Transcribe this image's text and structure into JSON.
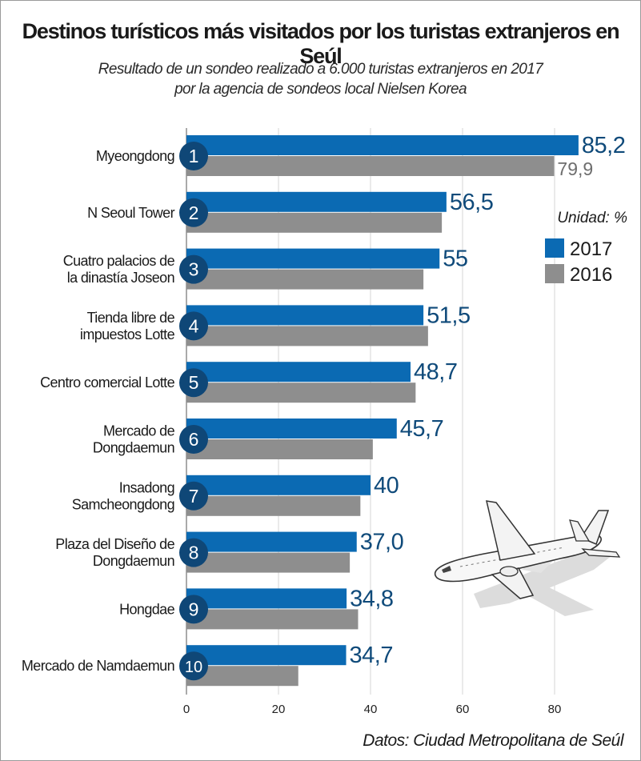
{
  "title": "Destinos turísticos más visitados por los turistas extranjeros en Seúl",
  "subtitle_line1": "Resultado de un sondeo realizado a 6.000 turistas extranjeros en 2017",
  "subtitle_line2": "por la agencia de sondeos local Nielsen Korea",
  "source": "Datos: Ciudad Metropolitana de Seúl",
  "colors": {
    "series_2017": "#0b6ab3",
    "series_2016": "#8e8e8e",
    "rank_badge": "#0f4777",
    "label_2017": "#0f4a7a",
    "label_2016": "#6e6e6e",
    "grid": "#d4d4d4"
  },
  "chart_data": {
    "type": "bar",
    "orientation": "horizontal",
    "unit_label": "Unidad: %",
    "legend_position": "right",
    "xlim": [
      0,
      90
    ],
    "xticks": [
      0,
      20,
      40,
      60,
      80
    ],
    "grid": true,
    "categories": [
      {
        "rank": "1",
        "lines": [
          "Myeongdong"
        ]
      },
      {
        "rank": "2",
        "lines": [
          "N Seoul Tower"
        ]
      },
      {
        "rank": "3",
        "lines": [
          "Cuatro palacios de",
          "la dinastía Joseon"
        ]
      },
      {
        "rank": "4",
        "lines": [
          "Tienda libre de",
          "impuestos Lotte"
        ]
      },
      {
        "rank": "5",
        "lines": [
          "Centro comercial Lotte"
        ]
      },
      {
        "rank": "6",
        "lines": [
          "Mercado de",
          "Dongdaemun"
        ]
      },
      {
        "rank": "7",
        "lines": [
          "Insadong",
          "Samcheongdong"
        ]
      },
      {
        "rank": "8",
        "lines": [
          "Plaza del Diseño de",
          "Dongdaemun"
        ]
      },
      {
        "rank": "9",
        "lines": [
          "Hongdae"
        ]
      },
      {
        "rank": "10",
        "lines": [
          "Mercado de Namdaemun"
        ]
      }
    ],
    "series": [
      {
        "name": "2017",
        "values": [
          85.2,
          56.5,
          55,
          51.5,
          48.7,
          45.7,
          40,
          37.0,
          34.8,
          34.7
        ],
        "labels": [
          "85,2",
          "56,5",
          "55",
          "51,5",
          "48,7",
          "45,7",
          "40",
          "37,0",
          "34,8",
          "34,7"
        ]
      },
      {
        "name": "2016",
        "values": [
          79.9,
          55.5,
          51.5,
          52.5,
          49.8,
          40.5,
          37.8,
          35.5,
          37.3,
          24.3
        ],
        "labels": [
          "79,9",
          "",
          "",
          "",
          "",
          "",
          "",
          "",
          "",
          ""
        ]
      }
    ]
  }
}
